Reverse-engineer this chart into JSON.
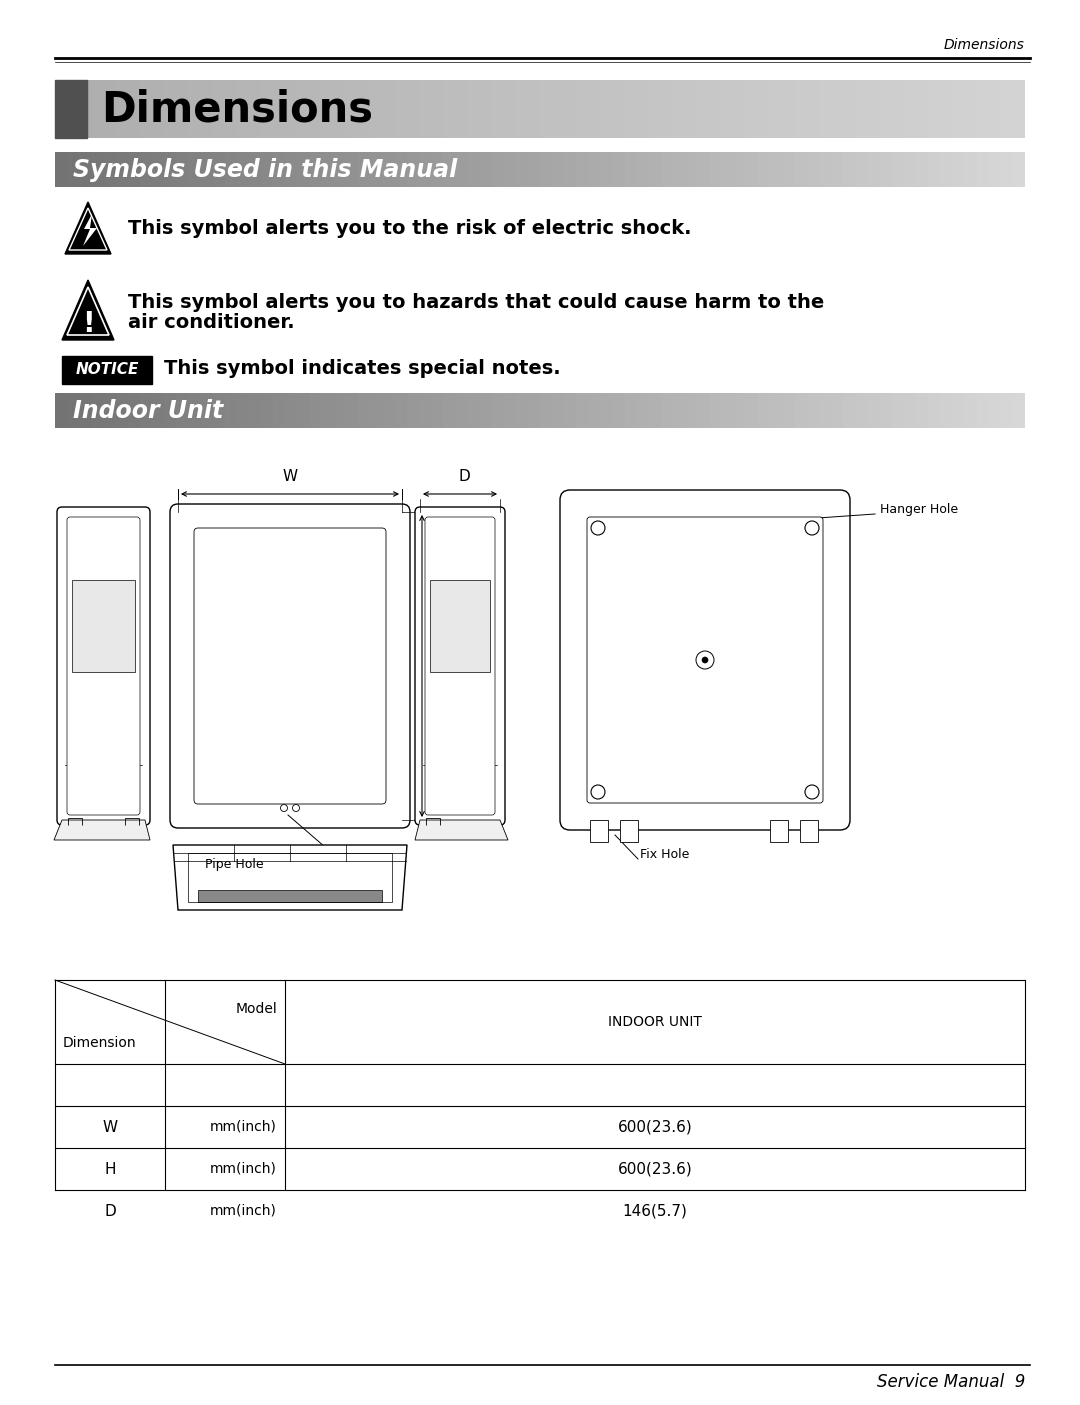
{
  "page_header_text": "Dimensions",
  "page_footer_text": "Service Manual  9",
  "main_title": "Dimensions",
  "section1_title": "Symbols Used in this Manual",
  "section2_title": "Indoor Unit",
  "symbol1_text": "This symbol alerts you to the risk of electric shock.",
  "symbol2_line1": "This symbol alerts you to hazards that could cause harm to the",
  "symbol2_line2": "air conditioner.",
  "notice_text": "This symbol indicates special notes.",
  "dim_labels": [
    "W",
    "H",
    "D"
  ],
  "mm_labels": [
    "mm(inch)",
    "mm(inch)",
    "mm(inch)"
  ],
  "val_labels": [
    "600(23.6)",
    "600(23.6)",
    "146(5.7)"
  ],
  "bg_color": "#ffffff",
  "draw_color": "#333333"
}
